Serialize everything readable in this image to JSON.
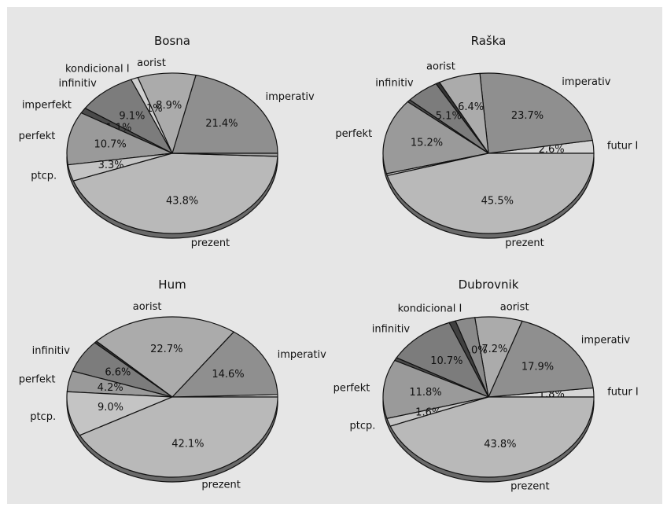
{
  "chart_data": [
    {
      "type": "pie",
      "title": "Bosna",
      "slices": [
        {
          "label": "imperativ",
          "value": 21.4,
          "pct_label": "21.4%",
          "color": "#8f8f8f"
        },
        {
          "label": "aorist",
          "value": 8.9,
          "pct_label": "8.9%",
          "color": "#ababab"
        },
        {
          "label": "kondicional I",
          "value": 1.1,
          "pct_label": "1.1%",
          "color": "#cfcfcf"
        },
        {
          "label": "infinitiv",
          "value": 9.1,
          "pct_label": "9.1%",
          "color": "#7c7c7c"
        },
        {
          "label": "imperfekt",
          "value": 1.1,
          "pct_label": "1.1%",
          "color": "#4a4a4a"
        },
        {
          "label": "perfekt",
          "value": 10.7,
          "pct_label": "10.7%",
          "color": "#9a9a9a"
        },
        {
          "label": "ptcp.",
          "value": 3.3,
          "pct_label": "3.3%",
          "color": "#c4c4c4"
        },
        {
          "label": "prezent",
          "value": 43.8,
          "pct_label": "43.8%",
          "color": "#b9b9b9"
        },
        {
          "label": "",
          "value": 0.6,
          "pct_label": "",
          "color": "#a0a0a0"
        }
      ]
    },
    {
      "type": "pie",
      "title": "Raška",
      "slices": [
        {
          "label": "futur I",
          "value": 2.6,
          "pct_label": "2.6%",
          "color": "#d6d6d6"
        },
        {
          "label": "imperativ",
          "value": 23.7,
          "pct_label": "23.7%",
          "color": "#8f8f8f"
        },
        {
          "label": "aorist",
          "value": 6.4,
          "pct_label": "6.4%",
          "color": "#ababab"
        },
        {
          "label": "",
          "value": 0.6,
          "pct_label": "",
          "color": "#333333"
        },
        {
          "label": "infinitiv",
          "value": 5.1,
          "pct_label": "5.1%",
          "color": "#7c7c7c"
        },
        {
          "label": "",
          "value": 0.5,
          "pct_label": "",
          "color": "#4a4a4a"
        },
        {
          "label": "perfekt",
          "value": 15.2,
          "pct_label": "15.2%",
          "color": "#9a9a9a"
        },
        {
          "label": "",
          "value": 0.4,
          "pct_label": "",
          "color": "#c4c4c4"
        },
        {
          "label": "prezent",
          "value": 45.5,
          "pct_label": "45.5%",
          "color": "#b9b9b9"
        }
      ]
    },
    {
      "type": "pie",
      "title": "Hum",
      "slices": [
        {
          "label": "",
          "value": 0.5,
          "pct_label": "",
          "color": "#d6d6d6"
        },
        {
          "label": "imperativ",
          "value": 14.6,
          "pct_label": "14.6%",
          "color": "#8f8f8f"
        },
        {
          "label": "aorist",
          "value": 22.7,
          "pct_label": "22.7%",
          "color": "#ababab"
        },
        {
          "label": "",
          "value": 0.4,
          "pct_label": "",
          "color": "#333333"
        },
        {
          "label": "infinitiv",
          "value": 6.6,
          "pct_label": "6.6%",
          "color": "#7c7c7c"
        },
        {
          "label": "perfekt",
          "value": 4.2,
          "pct_label": "4.2%",
          "color": "#9a9a9a"
        },
        {
          "label": "ptcp.",
          "value": 9.0,
          "pct_label": "9.0%",
          "color": "#c4c4c4"
        },
        {
          "label": "prezent",
          "value": 42.1,
          "pct_label": "42.1%",
          "color": "#b9b9b9"
        }
      ]
    },
    {
      "type": "pie",
      "title": "Dubrovnik",
      "slices": [
        {
          "label": "futur I",
          "value": 1.8,
          "pct_label": "1.8%",
          "color": "#d6d6d6"
        },
        {
          "label": "imperativ",
          "value": 17.9,
          "pct_label": "17.9%",
          "color": "#8f8f8f"
        },
        {
          "label": "aorist",
          "value": 7.2,
          "pct_label": "7.2%",
          "color": "#ababab"
        },
        {
          "label": "kondicional I",
          "value": 3.0,
          "pct_label": "3.0%",
          "color": "#8a8a8a"
        },
        {
          "label": "",
          "value": 1.0,
          "pct_label": "",
          "color": "#404040"
        },
        {
          "label": "infinitiv",
          "value": 10.7,
          "pct_label": "10.7%",
          "color": "#7c7c7c"
        },
        {
          "label": "",
          "value": 0.6,
          "pct_label": "",
          "color": "#4a4a4a"
        },
        {
          "label": "perfekt",
          "value": 11.8,
          "pct_label": "11.8%",
          "color": "#9a9a9a"
        },
        {
          "label": "ptcp.",
          "value": 1.6,
          "pct_label": "1.6%",
          "color": "#c4c4c4"
        },
        {
          "label": "prezent",
          "value": 43.8,
          "pct_label": "43.8%",
          "color": "#b9b9b9"
        }
      ]
    }
  ]
}
